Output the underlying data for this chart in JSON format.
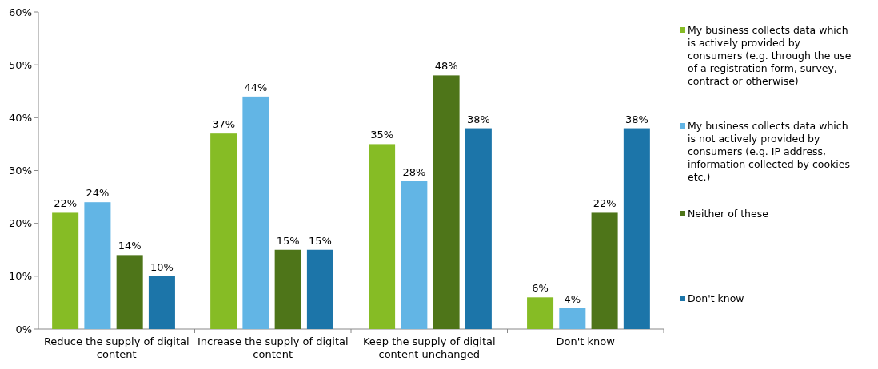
{
  "chart_data": {
    "type": "bar",
    "categories": [
      "Reduce the supply of digital content",
      "Increase the supply of digital content",
      "Keep the supply of  digital content unchanged",
      "Don't know"
    ],
    "series": [
      {
        "name": "My business collects data which is actively provided by consumers (e.g. through the use of a registration form, survey, contract or otherwise)",
        "color": "#86bc25",
        "values": [
          22,
          37,
          35,
          6
        ],
        "value_labels": [
          "22%",
          "37%",
          "35%",
          "6%"
        ]
      },
      {
        "name": "My business collects data which is not actively provided by consumers (e.g. IP address, information collected by cookies etc.)",
        "color": "#62b5e5",
        "values": [
          24,
          44,
          28,
          4
        ],
        "value_labels": [
          "24%",
          "44%",
          "28%",
          "4%"
        ]
      },
      {
        "name": "Neither of these",
        "color": "#4e7519",
        "values": [
          14,
          15,
          48,
          22
        ],
        "value_labels": [
          "14%",
          "15%",
          "48%",
          "22%"
        ]
      },
      {
        "name": "Don't know",
        "color": "#1c75a9",
        "values": [
          10,
          15,
          38,
          38
        ],
        "value_labels": [
          "10%",
          "15%",
          "38%",
          "38%"
        ]
      }
    ],
    "ylim": [
      0,
      60
    ],
    "yticks": [
      {
        "value": 0,
        "label": "0%"
      },
      {
        "value": 10,
        "label": "10%"
      },
      {
        "value": 20,
        "label": "20%"
      },
      {
        "value": 30,
        "label": "30%"
      },
      {
        "value": 40,
        "label": "40%"
      },
      {
        "value": 50,
        "label": "50%"
      },
      {
        "value": 60,
        "label": "60%"
      }
    ],
    "legend": "right"
  }
}
